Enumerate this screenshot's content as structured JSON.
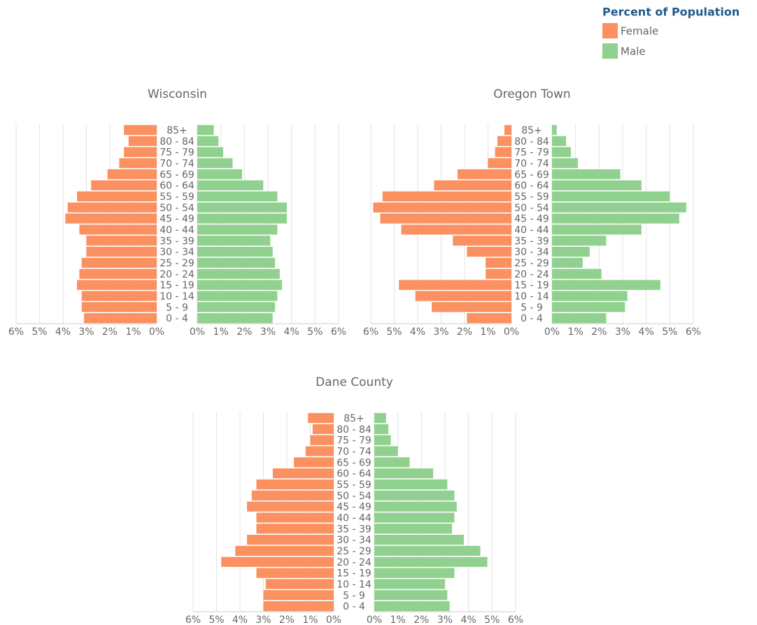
{
  "legend_title": "Percent of Population",
  "chart_data": [
    {
      "type": "pyramid",
      "title": "Wisconsin",
      "categories": [
        "85+",
        "80 - 84",
        "75 - 79",
        "70 - 74",
        "65 - 69",
        "60 - 64",
        "55 - 59",
        "50 - 54",
        "45 - 49",
        "40 - 44",
        "35 - 39",
        "30 - 34",
        "25 - 29",
        "20 - 24",
        "15 - 19",
        "10 - 14",
        "5 - 9",
        "0 - 4"
      ],
      "series": [
        {
          "name": "Female",
          "color": "#fb9161",
          "values": [
            1.4,
            1.2,
            1.4,
            1.6,
            2.1,
            2.8,
            3.4,
            3.8,
            3.9,
            3.3,
            3.0,
            3.0,
            3.2,
            3.3,
            3.4,
            3.2,
            3.2,
            3.1
          ]
        },
        {
          "name": "Male",
          "color": "#91d18f",
          "values": [
            0.7,
            0.9,
            1.1,
            1.5,
            1.9,
            2.8,
            3.4,
            3.8,
            3.8,
            3.4,
            3.1,
            3.2,
            3.3,
            3.5,
            3.6,
            3.4,
            3.3,
            3.2
          ]
        }
      ],
      "xlim": [
        0,
        6
      ],
      "xticks": [
        {
          "value": 0,
          "label": "0%"
        },
        {
          "value": 1,
          "label": "1%"
        },
        {
          "value": 2,
          "label": "2%"
        },
        {
          "value": 3,
          "label": "3%"
        },
        {
          "value": 4,
          "label": "4%"
        },
        {
          "value": 5,
          "label": "5%"
        },
        {
          "value": 6,
          "label": "6%"
        }
      ],
      "grid": true
    },
    {
      "type": "pyramid",
      "title": "Oregon Town",
      "categories": [
        "85+",
        "80 - 84",
        "75 - 79",
        "70 - 74",
        "65 - 69",
        "60 - 64",
        "55 - 59",
        "50 - 54",
        "45 - 49",
        "40 - 44",
        "35 - 39",
        "30 - 34",
        "25 - 29",
        "20 - 24",
        "15 - 19",
        "10 - 14",
        "5 - 9",
        "0 - 4"
      ],
      "series": [
        {
          "name": "Female",
          "color": "#fb9161",
          "values": [
            0.3,
            0.6,
            0.7,
            1.0,
            2.3,
            3.3,
            5.5,
            5.9,
            5.6,
            4.7,
            2.5,
            1.9,
            1.1,
            1.1,
            4.8,
            4.1,
            3.4,
            1.9
          ]
        },
        {
          "name": "Male",
          "color": "#91d18f",
          "values": [
            0.2,
            0.6,
            0.8,
            1.1,
            2.9,
            3.8,
            5.0,
            5.7,
            5.4,
            3.8,
            2.3,
            1.6,
            1.3,
            2.1,
            4.6,
            3.2,
            3.1,
            2.3
          ]
        }
      ],
      "xlim": [
        0,
        6
      ],
      "xticks": [
        {
          "value": 0,
          "label": "0%"
        },
        {
          "value": 1,
          "label": "1%"
        },
        {
          "value": 2,
          "label": "2%"
        },
        {
          "value": 3,
          "label": "3%"
        },
        {
          "value": 4,
          "label": "4%"
        },
        {
          "value": 5,
          "label": "5%"
        },
        {
          "value": 6,
          "label": "6%"
        }
      ],
      "grid": true
    },
    {
      "type": "pyramid",
      "title": "Dane County",
      "categories": [
        "85+",
        "80 - 84",
        "75 - 79",
        "70 - 74",
        "65 - 69",
        "60 - 64",
        "55 - 59",
        "50 - 54",
        "45 - 49",
        "40 - 44",
        "35 - 39",
        "30 - 34",
        "25 - 29",
        "20 - 24",
        "15 - 19",
        "10 - 14",
        "5 - 9",
        "0 - 4"
      ],
      "series": [
        {
          "name": "Female",
          "color": "#fb9161",
          "values": [
            1.1,
            0.9,
            1.0,
            1.2,
            1.7,
            2.6,
            3.3,
            3.5,
            3.7,
            3.3,
            3.3,
            3.7,
            4.2,
            4.8,
            3.3,
            2.9,
            3.0,
            3.0
          ]
        },
        {
          "name": "Male",
          "color": "#91d18f",
          "values": [
            0.5,
            0.6,
            0.7,
            1.0,
            1.5,
            2.5,
            3.1,
            3.4,
            3.5,
            3.4,
            3.3,
            3.8,
            4.5,
            4.8,
            3.4,
            3.0,
            3.1,
            3.2
          ]
        }
      ],
      "xlim": [
        0,
        6
      ],
      "xticks": [
        {
          "value": 0,
          "label": "0%"
        },
        {
          "value": 1,
          "label": "1%"
        },
        {
          "value": 2,
          "label": "2%"
        },
        {
          "value": 3,
          "label": "3%"
        },
        {
          "value": 4,
          "label": "4%"
        },
        {
          "value": 5,
          "label": "5%"
        },
        {
          "value": 6,
          "label": "6%"
        }
      ],
      "grid": true
    }
  ]
}
